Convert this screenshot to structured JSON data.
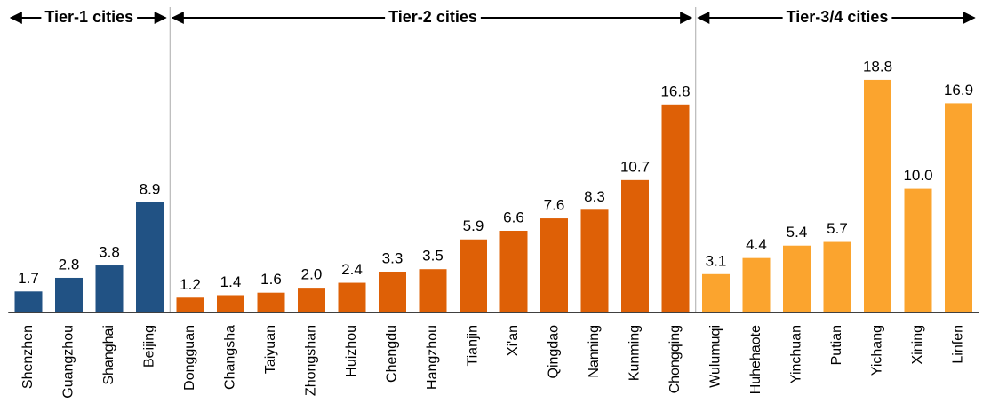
{
  "chart_data": {
    "type": "bar",
    "groups": [
      {
        "name": "Tier-1 cities",
        "color": "#215284",
        "categories": [
          "Shenzhen",
          "Guangzhou",
          "Shanghai",
          "Beijing"
        ],
        "values": [
          1.7,
          2.8,
          3.8,
          8.9
        ],
        "value_labels": [
          "1.7",
          "2.8",
          "3.8",
          "8.9"
        ]
      },
      {
        "name": "Tier-2 cities",
        "color": "#de6006",
        "categories": [
          "Dongguan",
          "Changsha",
          "Taiyuan",
          "Zhongshan",
          "Huizhou",
          "Chengdu",
          "Hangzhou",
          "Tianjin",
          "Xi'an",
          "Qingdao",
          "Nanning",
          "Kunming",
          "Chongqing"
        ],
        "values": [
          1.2,
          1.4,
          1.6,
          2.0,
          2.4,
          3.3,
          3.5,
          5.9,
          6.6,
          7.6,
          8.3,
          10.7,
          16.8
        ],
        "value_labels": [
          "1.2",
          "1.4",
          "1.6",
          "2.0",
          "2.4",
          "3.3",
          "3.5",
          "5.9",
          "6.6",
          "7.6",
          "8.3",
          "10.7",
          "16.8"
        ]
      },
      {
        "name": "Tier-3/4 cities",
        "color": "#fba42e",
        "categories": [
          "Wulumuqi",
          "Huhehaote",
          "Yinchuan",
          "Putian",
          "Yichang",
          "Xining",
          "Linfen"
        ],
        "values": [
          3.1,
          4.4,
          5.4,
          5.7,
          18.8,
          10.0,
          16.9
        ],
        "value_labels": [
          "3.1",
          "4.4",
          "5.4",
          "5.7",
          "18.8",
          "10.0",
          "16.9"
        ]
      }
    ],
    "ylim": [
      0,
      20
    ]
  }
}
